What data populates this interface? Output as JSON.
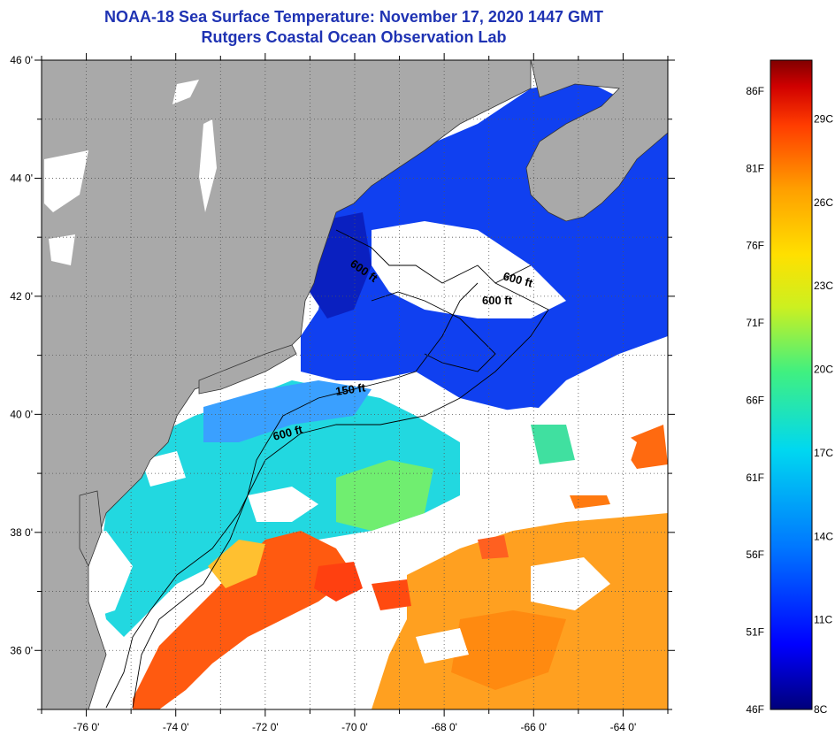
{
  "title": "NOAA-18 Sea Surface Temperature:  November 17, 2020 1447 GMT",
  "subtitle": "Rutgers Coastal Ocean Observation Lab",
  "map": {
    "lat_labels": [
      "46 0'",
      "44 0'",
      "42 0'",
      "40 0'",
      "38 0'",
      "36 0'"
    ],
    "lat_values": [
      46,
      44,
      42,
      40,
      38,
      36
    ],
    "lon_labels": [
      "-76 0'",
      "-74 0'",
      "-72 0'",
      "-70 0'",
      "-68 0'",
      "-66 0'",
      "-64 0'"
    ],
    "lon_values": [
      -76,
      -74,
      -72,
      -70,
      -68,
      -66,
      -64
    ],
    "lat_range": [
      35,
      46
    ],
    "lon_range": [
      -77,
      -63
    ],
    "isobath_labels": [
      "600 ft",
      "600 ft",
      "600 ft",
      "150 ft",
      "600 ft"
    ]
  },
  "colorbar": {
    "fahrenheit_labels": [
      "86F",
      "81F",
      "76F",
      "71F",
      "66F",
      "61F",
      "56F",
      "51F",
      "46F"
    ],
    "celsius_labels": [
      "29C",
      "26C",
      "23C",
      "20C",
      "17C",
      "14C",
      "11C",
      "8C"
    ],
    "range_f": [
      46,
      88
    ],
    "colors": [
      "#00007a",
      "#0000ff",
      "#0077ff",
      "#00d8f0",
      "#40f080",
      "#ccf020",
      "#ffe000",
      "#ffa000",
      "#ff3c00",
      "#d00000",
      "#800000"
    ]
  },
  "colors": {
    "land": "#a9a9a9",
    "cloud": "#ffffff",
    "title": "#1f33b3"
  }
}
